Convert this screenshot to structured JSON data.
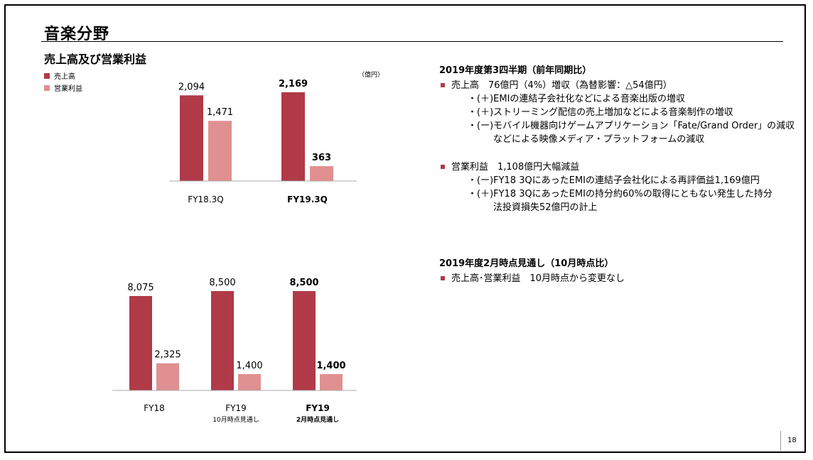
{
  "page": {
    "title": "音楽分野",
    "subtitle": "売上高及び営業利益",
    "page_number": "18"
  },
  "legend": [
    {
      "label": "売上高",
      "color": "#b03a48"
    },
    {
      "label": "営業利益",
      "color": "#e09090"
    }
  ],
  "unit_label": "（億円）",
  "colors": {
    "sales": "#b03a48",
    "profit": "#e09090",
    "bullet": "#b03a48"
  },
  "chart_data": [
    {
      "type": "bar",
      "categories": [
        "FY18.3Q",
        "FY19.3Q"
      ],
      "category_bold": [
        false,
        true
      ],
      "series": [
        {
          "name": "売上高",
          "values": [
            2094,
            2169
          ],
          "labels": [
            "2,094",
            "2,169"
          ]
        },
        {
          "name": "営業利益",
          "values": [
            1471,
            363
          ],
          "labels": [
            "1,471",
            "363"
          ]
        }
      ],
      "label_bold": [
        false,
        true
      ],
      "ylim": [
        0,
        2300
      ]
    },
    {
      "type": "bar",
      "categories": [
        "FY18",
        "FY19",
        "FY19"
      ],
      "category_sublabels": [
        "",
        "10月時点見通し",
        "2月時点見通し"
      ],
      "category_bold": [
        false,
        false,
        true
      ],
      "series": [
        {
          "name": "売上高",
          "values": [
            8075,
            8500,
            8500
          ],
          "labels": [
            "8,075",
            "8,500",
            "8,500"
          ]
        },
        {
          "name": "営業利益",
          "values": [
            2325,
            1400,
            1400
          ],
          "labels": [
            "2,325",
            "1,400",
            "1,400"
          ]
        }
      ],
      "label_bold": [
        false,
        false,
        true
      ],
      "ylim": [
        0,
        9000
      ]
    }
  ],
  "section1": {
    "heading": "2019年度第3四半期（前年同期比）",
    "bullet1": "売上高　76億円（4%）増収（為替影響：△54億円）",
    "bullet1_subs": [
      "・(＋)EMIの連結子会社化などによる音楽出版の増収",
      "・(＋)ストリーミング配信の売上増加などによる音楽制作の増収",
      "・(ー)モバイル機器向けゲームアプリケーション「Fate/Grand Order」の減収"
    ],
    "bullet1_cont": "などによる映像メディア・プラットフォームの減収",
    "bullet2": "営業利益　1,108億円大幅減益",
    "bullet2_subs": [
      "・(ー)FY18 3QにあったEMIの連結子会社化による再評価益1,169億円",
      "・(＋)FY18 3QにあったEMIの持分約60%の取得にともない発生した持分"
    ],
    "bullet2_cont": "法投資損失52億円の計上"
  },
  "section2": {
    "heading": "2019年度2月時点見通し（10月時点比）",
    "bullet1": "売上高･営業利益　10月時点から変更なし"
  }
}
